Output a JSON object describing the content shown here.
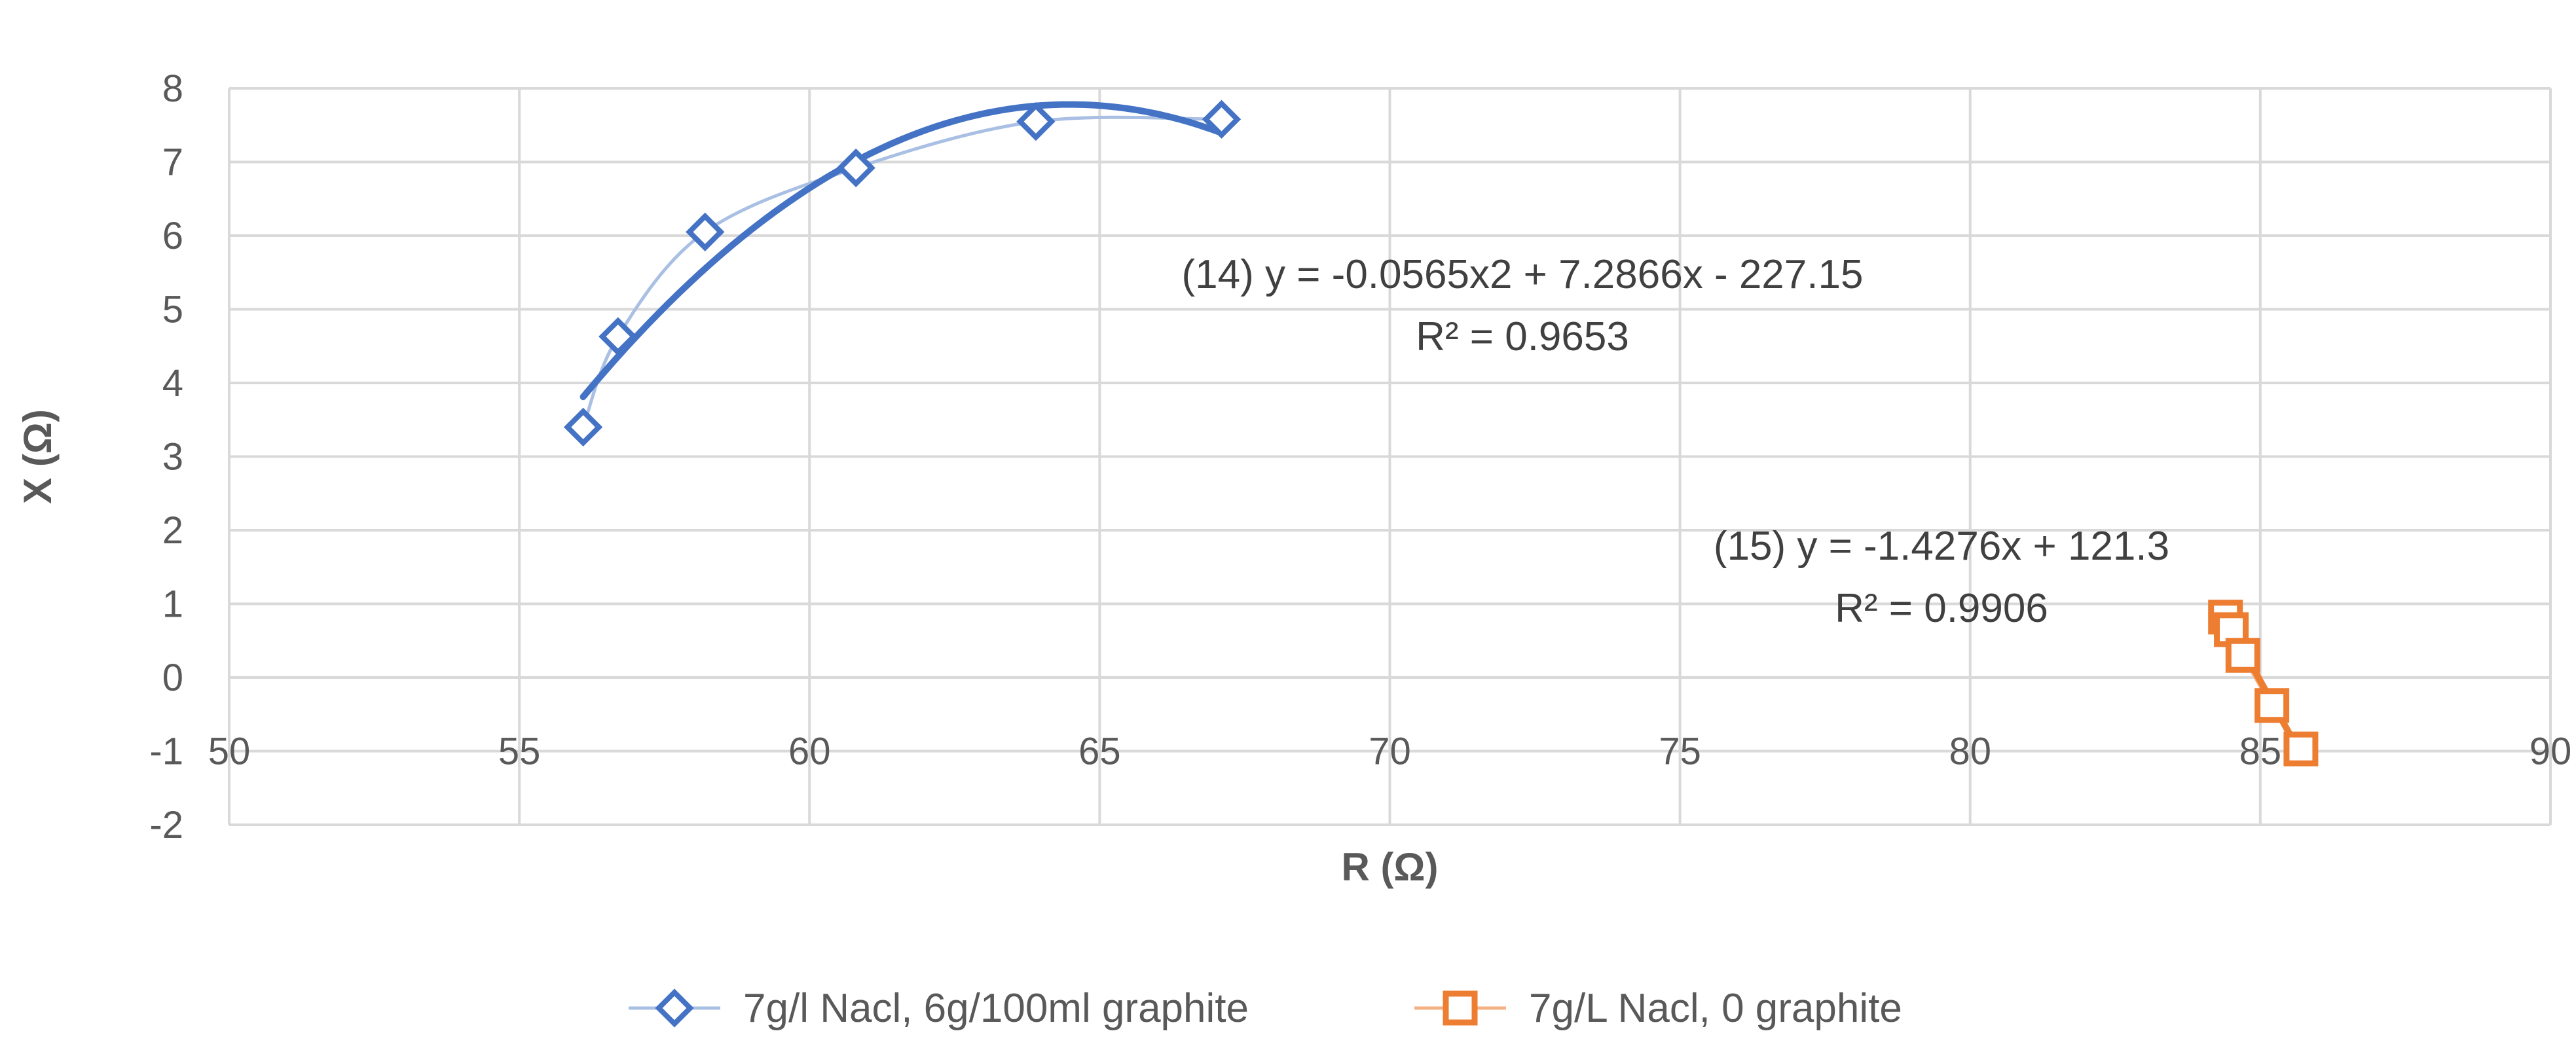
{
  "chart_data": {
    "type": "scatter",
    "xlabel": "R (Ω)",
    "ylabel": "X (Ω)",
    "xlim": [
      50,
      90
    ],
    "ylim": [
      -2,
      8
    ],
    "x_ticks": [
      "50",
      "55",
      "60",
      "65",
      "70",
      "75",
      "80",
      "85",
      "90"
    ],
    "y_ticks": [
      "8",
      "7",
      "6",
      "5",
      "4",
      "3",
      "2",
      "1",
      "0",
      "-1",
      "-2"
    ],
    "grid": true,
    "legend_position": "bottom",
    "series": [
      {
        "name": "7g/l Nacl, 6g/100ml graphite",
        "marker": "diamond",
        "color": "#4472C4",
        "line_color": "#A9BFE3",
        "trendline_color": "#4472C4",
        "points": [
          {
            "x": 56.1,
            "y": 3.4
          },
          {
            "x": 56.7,
            "y": 4.63
          },
          {
            "x": 58.2,
            "y": 6.05
          },
          {
            "x": 60.8,
            "y": 6.92
          },
          {
            "x": 63.9,
            "y": 7.55
          },
          {
            "x": 67.1,
            "y": 7.58
          }
        ],
        "trendline": {
          "type": "poly2",
          "a": -0.0565,
          "b": 7.2866,
          "c": -227.15,
          "x_range": [
            56.1,
            67.1
          ]
        }
      },
      {
        "name": "7g/L Nacl, 0 graphite",
        "marker": "square",
        "color": "#ED7D31",
        "line_color": "#F4B183",
        "trendline_color": "#ED7D31",
        "points": [
          {
            "x": 84.4,
            "y": 0.82
          },
          {
            "x": 84.5,
            "y": 0.65
          },
          {
            "x": 84.7,
            "y": 0.3
          },
          {
            "x": 85.2,
            "y": -0.38
          },
          {
            "x": 85.7,
            "y": -0.97
          }
        ],
        "trendline": {
          "type": "linear",
          "m": -1.4276,
          "b": 121.3,
          "x_range": [
            84.4,
            85.7
          ]
        }
      }
    ],
    "annotations": [
      {
        "id": "eq14",
        "line1": "(14) y = -0.0565x2 + 7.2866x - 227.15",
        "line2": "R² = 0.9653"
      },
      {
        "id": "eq15",
        "line1": "(15) y = -1.4276x + 121.3",
        "line2": "R² = 0.9906"
      }
    ]
  }
}
